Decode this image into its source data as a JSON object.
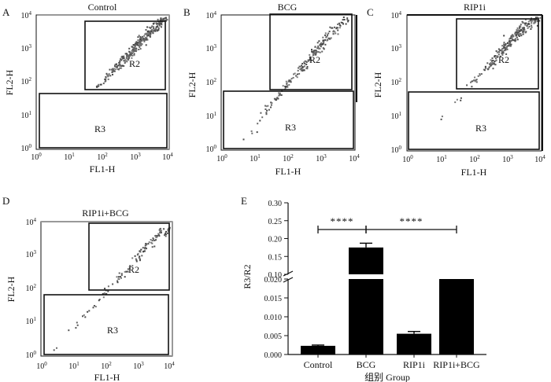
{
  "chart_data": [
    {
      "type": "scatter",
      "panel": "A",
      "title": "Control",
      "xlabel": "FL1-H",
      "ylabel": "FL2-H",
      "scale": "log",
      "xlim": [
        1,
        10000
      ],
      "ylim": [
        1,
        10000
      ],
      "ticks": [
        "10^0",
        "10^1",
        "10^2",
        "10^3",
        "10^4"
      ],
      "gates": [
        {
          "name": "R2",
          "x": [
            60,
            8000
          ],
          "y": [
            80,
            10000
          ]
        },
        {
          "name": "R3",
          "x": [
            1,
            9000
          ],
          "y": [
            1,
            60
          ]
        }
      ],
      "points": [
        {
          "x": 70,
          "y": 80,
          "spread": 0.06,
          "n": 5
        },
        {
          "x": 120,
          "y": 130,
          "spread": 0.08,
          "n": 12
        },
        {
          "x": 200,
          "y": 250,
          "spread": 0.1,
          "n": 30
        },
        {
          "x": 400,
          "y": 450,
          "spread": 0.14,
          "n": 45
        },
        {
          "x": 800,
          "y": 900,
          "spread": 0.16,
          "n": 55
        },
        {
          "x": 1500,
          "y": 2000,
          "spread": 0.18,
          "n": 65
        },
        {
          "x": 3000,
          "y": 4000,
          "spread": 0.18,
          "n": 70
        },
        {
          "x": 6000,
          "y": 7000,
          "spread": 0.12,
          "n": 40
        }
      ]
    },
    {
      "type": "scatter",
      "panel": "B",
      "title": "BCG",
      "xlabel": "FL1-H",
      "ylabel": "FL2-H",
      "scale": "log",
      "xlim": [
        1,
        10000
      ],
      "ylim": [
        1,
        10000
      ],
      "ticks": [
        "10^0",
        "10^1",
        "10^2",
        "10^3",
        "10^4"
      ],
      "gates": [
        {
          "name": "R2",
          "x": [
            90,
            9000
          ],
          "y": [
            80,
            10000
          ]
        },
        {
          "name": "R3",
          "x": [
            1,
            9000
          ],
          "y": [
            1,
            60
          ]
        }
      ],
      "points": [
        {
          "x": 8,
          "y": 4,
          "spread": 0.12,
          "n": 6
        },
        {
          "x": 20,
          "y": 15,
          "spread": 0.12,
          "n": 12
        },
        {
          "x": 50,
          "y": 40,
          "spread": 0.1,
          "n": 18
        },
        {
          "x": 100,
          "y": 100,
          "spread": 0.1,
          "n": 22
        },
        {
          "x": 250,
          "y": 300,
          "spread": 0.14,
          "n": 35
        },
        {
          "x": 600,
          "y": 800,
          "spread": 0.16,
          "n": 40
        },
        {
          "x": 1500,
          "y": 2500,
          "spread": 0.16,
          "n": 40
        },
        {
          "x": 4000,
          "y": 6000,
          "spread": 0.14,
          "n": 30
        }
      ]
    },
    {
      "type": "scatter",
      "panel": "C",
      "title": "RIP1i",
      "xlabel": "FL1-H",
      "ylabel": "FL2-H",
      "scale": "log",
      "xlim": [
        1,
        10000
      ],
      "ylim": [
        1,
        10000
      ],
      "ticks": [
        "10^0",
        "10^1",
        "10^2",
        "10^3",
        "10^4"
      ],
      "gates": [
        {
          "name": "R2",
          "x": [
            60,
            10000
          ],
          "y": [
            80,
            10000
          ]
        },
        {
          "name": "R3",
          "x": [
            1,
            9000
          ],
          "y": [
            1,
            60
          ]
        }
      ],
      "points": [
        {
          "x": 10,
          "y": 8,
          "spread": 0.08,
          "n": 2
        },
        {
          "x": 30,
          "y": 30,
          "spread": 0.1,
          "n": 4
        },
        {
          "x": 120,
          "y": 150,
          "spread": 0.1,
          "n": 15
        },
        {
          "x": 300,
          "y": 400,
          "spread": 0.14,
          "n": 35
        },
        {
          "x": 700,
          "y": 1000,
          "spread": 0.16,
          "n": 55
        },
        {
          "x": 1500,
          "y": 2500,
          "spread": 0.18,
          "n": 65
        },
        {
          "x": 3500,
          "y": 5000,
          "spread": 0.16,
          "n": 55
        },
        {
          "x": 7000,
          "y": 8000,
          "spread": 0.1,
          "n": 30
        }
      ]
    },
    {
      "type": "scatter",
      "panel": "D",
      "title": "RIP1i+BCG",
      "xlabel": "FL1-H",
      "ylabel": "FL2-H",
      "scale": "log",
      "xlim": [
        1,
        10000
      ],
      "ylim": [
        1,
        10000
      ],
      "ticks": [
        "10^0",
        "10^1",
        "10^2",
        "10^3",
        "10^4"
      ],
      "gates": [
        {
          "name": "R2",
          "x": [
            90,
            9000
          ],
          "y": [
            80,
            10000
          ]
        },
        {
          "name": "R3",
          "x": [
            1,
            9000
          ],
          "y": [
            1,
            60
          ]
        }
      ],
      "points": [
        {
          "x": 4,
          "y": 3,
          "spread": 0.1,
          "n": 2
        },
        {
          "x": 10,
          "y": 8,
          "spread": 0.1,
          "n": 4
        },
        {
          "x": 30,
          "y": 25,
          "spread": 0.1,
          "n": 8
        },
        {
          "x": 80,
          "y": 80,
          "spread": 0.1,
          "n": 12
        },
        {
          "x": 300,
          "y": 300,
          "spread": 0.12,
          "n": 20
        },
        {
          "x": 1000,
          "y": 1200,
          "spread": 0.14,
          "n": 30
        },
        {
          "x": 3000,
          "y": 3500,
          "spread": 0.14,
          "n": 35
        },
        {
          "x": 7000,
          "y": 6000,
          "spread": 0.1,
          "n": 15
        }
      ]
    },
    {
      "type": "bar",
      "panel": "E",
      "title": "",
      "xlabel": "组别 Group",
      "ylabel": "R3/R2",
      "categories": [
        "Control",
        "BCG",
        "RIP1i",
        "RIP1i+BCG"
      ],
      "values": [
        0.0023,
        0.175,
        0.0055,
        0.02
      ],
      "errors": [
        0.0002,
        0.012,
        0.0006,
        0
      ],
      "axis_break": {
        "lower": [
          0,
          0.02
        ],
        "upper": [
          0.1,
          0.3
        ]
      },
      "yticks_lower": [
        "0.000",
        "0.005",
        "0.010",
        "0.015",
        "0.020"
      ],
      "yticks_upper": [
        "0.10",
        "0.15",
        "0.20",
        "0.25",
        "0.30"
      ],
      "significance": [
        {
          "from": "Control",
          "to": "BCG",
          "label": "****"
        },
        {
          "from": "BCG",
          "to": "RIP1i+BCG",
          "label": "****"
        }
      ]
    }
  ]
}
